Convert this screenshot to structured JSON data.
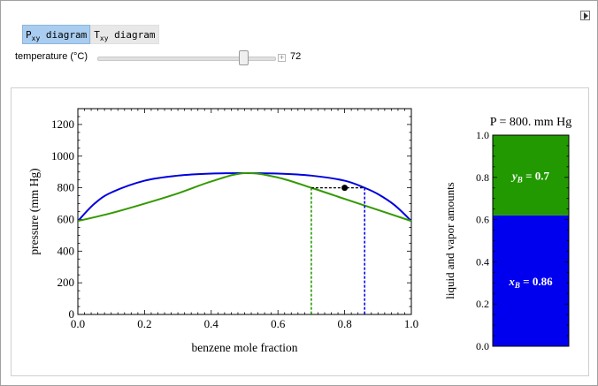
{
  "controls": {
    "tabs": [
      {
        "main": "P",
        "sub": "xy",
        "rest": " diagram"
      },
      {
        "main": "T",
        "sub": "xy",
        "rest": " diagram"
      }
    ],
    "slider_label": "temperature (°C)",
    "slider_value": "72",
    "slider_fraction": 0.81
  },
  "chart_data": [
    {
      "type": "line",
      "xlabel": "benzene mole fraction",
      "ylabel": "pressure (mm Hg)",
      "xlim": [
        0,
        1
      ],
      "ylim": [
        0,
        1300
      ],
      "xticks": [
        0.0,
        0.2,
        0.4,
        0.6,
        0.8,
        1.0
      ],
      "xtick_labels": [
        "0.0",
        "0.2",
        "0.4",
        "0.6",
        "0.8",
        "1.0"
      ],
      "yticks": [
        0,
        200,
        400,
        600,
        800,
        1000,
        1200
      ],
      "ytick_labels": [
        "0",
        "200",
        "400",
        "600",
        "800",
        "1000",
        "1200"
      ],
      "series": [
        {
          "color": "#0000dd",
          "x": [
            0.0,
            0.05,
            0.1,
            0.2,
            0.3,
            0.4,
            0.5,
            0.6,
            0.7,
            0.8,
            0.86,
            0.9,
            0.95,
            1.0
          ],
          "y": [
            590,
            700,
            770,
            845,
            877,
            890,
            893,
            890,
            877,
            845,
            800,
            760,
            690,
            590
          ]
        },
        {
          "color": "#339900",
          "x": [
            0.0,
            0.1,
            0.2,
            0.3,
            0.4,
            0.5,
            0.6,
            0.7,
            0.8,
            0.9,
            1.0
          ],
          "y": [
            590,
            640,
            700,
            765,
            840,
            893,
            865,
            800,
            730,
            660,
            590
          ]
        }
      ],
      "point": {
        "x": 0.8,
        "y": 800
      },
      "tie_line": {
        "y": 800,
        "x_vapor": 0.7,
        "x_liquid": 0.86
      }
    },
    {
      "type": "bar",
      "title": "P =  800. mm Hg",
      "ylabel": "liquid and vapor amounts",
      "ylim": [
        0,
        1
      ],
      "yticks": [
        0.0,
        0.2,
        0.4,
        0.6,
        0.8,
        1.0
      ],
      "ytick_labels": [
        "0.0",
        "0.2",
        "0.4",
        "0.6",
        "0.8",
        "1.0"
      ],
      "segments": [
        {
          "phase": "liquid",
          "from": 0.0,
          "to": 0.62,
          "color": "#0000ee",
          "label_var": "x",
          "label_sub": "B",
          "label_value": " = 0.86"
        },
        {
          "phase": "vapor",
          "from": 0.62,
          "to": 1.0,
          "color": "#229900",
          "label_var": "y",
          "label_sub": "B",
          "label_value": " = 0.7"
        }
      ]
    }
  ]
}
